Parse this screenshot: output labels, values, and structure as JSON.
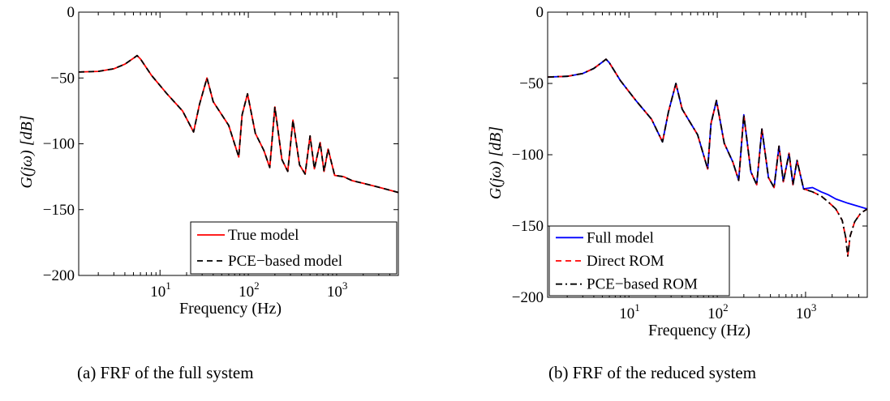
{
  "chart_data": [
    {
      "type": "line",
      "panel": "a",
      "caption": "(a) FRF of the full system",
      "xlabel": "Frequency (Hz)",
      "ylabel": "G(jω) [dB]",
      "xscale": "log",
      "xlim": [
        1.2,
        5000
      ],
      "ylim": [
        -200,
        0
      ],
      "xticks": [
        10,
        100,
        1000
      ],
      "xtick_base": "10",
      "xtick_exponents": [
        "1",
        "2",
        "3"
      ],
      "yticks": [
        "0",
        "−50",
        "−100",
        "−150",
        "−200"
      ],
      "grid": false,
      "legend": {
        "placement": "bottom-right",
        "entries": [
          "True model",
          "PCE−based model"
        ]
      },
      "series": [
        {
          "name": "True model",
          "color": "#ff0000",
          "style": "solid",
          "x": [
            1.2,
            2,
            3,
            4,
            5,
            5.5,
            6,
            8,
            12,
            18,
            24,
            28,
            34,
            40,
            60,
            78,
            85,
            98,
            120,
            150,
            175,
            200,
            240,
            280,
            320,
            380,
            440,
            500,
            560,
            650,
            720,
            800,
            950,
            1200,
            1500,
            2000,
            3000,
            5000
          ],
          "y": [
            -45.5,
            -45,
            -43,
            -39.5,
            -35,
            -33,
            -35.5,
            -48,
            -62,
            -75,
            -91,
            -70,
            -50,
            -68,
            -86,
            -110,
            -78,
            -62,
            -92,
            -105,
            -118,
            -72,
            -112,
            -121,
            -82,
            -116,
            -123,
            -94,
            -119,
            -99,
            -121,
            -104,
            -124,
            -125,
            -128,
            -130,
            -133,
            -137
          ]
        },
        {
          "name": "PCE−based model",
          "color": "#000000",
          "style": "dashed",
          "x": [
            1.2,
            2,
            3,
            4,
            5,
            5.5,
            6,
            8,
            12,
            18,
            24,
            28,
            34,
            40,
            60,
            78,
            85,
            98,
            120,
            150,
            175,
            200,
            240,
            280,
            320,
            380,
            440,
            500,
            560,
            650,
            720,
            800,
            950,
            1200,
            1500,
            2000,
            3000,
            5000
          ],
          "y": [
            -45.5,
            -45,
            -43,
            -39.5,
            -35,
            -33,
            -35.5,
            -48,
            -62,
            -75,
            -91,
            -70,
            -50,
            -68,
            -86,
            -110,
            -78,
            -62,
            -92,
            -105,
            -118,
            -72,
            -112,
            -121,
            -82,
            -116,
            -123,
            -94,
            -119,
            -99,
            -121,
            -104,
            -124,
            -125,
            -128,
            -130,
            -133,
            -137
          ]
        }
      ]
    },
    {
      "type": "line",
      "panel": "b",
      "caption": "(b) FRF of the reduced system",
      "xlabel": "Frequency (Hz)",
      "ylabel": "G(jω) [dB]",
      "xscale": "log",
      "xlim": [
        1.2,
        5000
      ],
      "ylim": [
        -200,
        0
      ],
      "xticks": [
        10,
        100,
        1000
      ],
      "xtick_base": "10",
      "xtick_exponents": [
        "1",
        "2",
        "3"
      ],
      "yticks": [
        "0",
        "−50",
        "−100",
        "−150",
        "−200"
      ],
      "grid": false,
      "legend": {
        "placement": "bottom-left",
        "entries": [
          "Full model",
          "Direct ROM",
          "PCE−based ROM"
        ]
      },
      "series": [
        {
          "name": "Full model",
          "color": "#0000ff",
          "style": "solid",
          "x": [
            1.2,
            2,
            3,
            4,
            5,
            5.5,
            6,
            8,
            12,
            18,
            24,
            28,
            34,
            40,
            60,
            78,
            85,
            98,
            120,
            150,
            175,
            200,
            240,
            280,
            320,
            380,
            440,
            500,
            560,
            650,
            720,
            800,
            950,
            1200,
            1500,
            1800,
            2200,
            3000,
            5000
          ],
          "y": [
            -45.5,
            -45,
            -43,
            -39.5,
            -35,
            -33,
            -35.5,
            -48,
            -62,
            -75,
            -91,
            -70,
            -50,
            -68,
            -86,
            -110,
            -78,
            -62,
            -92,
            -105,
            -118,
            -72,
            -112,
            -121,
            -82,
            -116,
            -123,
            -94,
            -119,
            -99,
            -121,
            -104,
            -124,
            -123,
            -126,
            -128,
            -131,
            -134,
            -138
          ]
        },
        {
          "name": "Direct ROM",
          "color": "#ff0000",
          "style": "dashed",
          "x": [
            1.2,
            2,
            3,
            4,
            5,
            5.5,
            6,
            8,
            12,
            18,
            24,
            28,
            34,
            40,
            60,
            78,
            85,
            98,
            120,
            150,
            175,
            200,
            240,
            280,
            320,
            380,
            440,
            500,
            560,
            650,
            720,
            800,
            950,
            1200,
            1500,
            1800,
            2200,
            2600,
            2850,
            3000,
            3200,
            3600,
            4200,
            5000
          ],
          "y": [
            -45.5,
            -45,
            -43,
            -39.5,
            -35,
            -33,
            -35.5,
            -48,
            -62,
            -75,
            -91,
            -70,
            -50,
            -68,
            -86,
            -110,
            -78,
            -62,
            -92,
            -105,
            -118,
            -72,
            -112,
            -121,
            -82,
            -116,
            -123,
            -94,
            -119,
            -99,
            -121,
            -104,
            -124,
            -126,
            -129,
            -133,
            -138,
            -146,
            -158,
            -171,
            -157,
            -147,
            -141,
            -138
          ]
        },
        {
          "name": "PCE−based ROM",
          "color": "#000000",
          "style": "dashdot",
          "x": [
            1.2,
            2,
            3,
            4,
            5,
            5.5,
            6,
            8,
            12,
            18,
            24,
            28,
            34,
            40,
            60,
            78,
            85,
            98,
            120,
            150,
            175,
            200,
            240,
            280,
            320,
            380,
            440,
            500,
            560,
            650,
            720,
            800,
            950,
            1200,
            1500,
            1800,
            2200,
            2600,
            2850,
            3000,
            3200,
            3600,
            4200,
            5000
          ],
          "y": [
            -45.5,
            -45,
            -43,
            -39.5,
            -35,
            -33,
            -35.5,
            -48,
            -62,
            -75,
            -91,
            -70,
            -50,
            -68,
            -86,
            -110,
            -78,
            -62,
            -92,
            -105,
            -118,
            -72,
            -112,
            -121,
            -82,
            -116,
            -123,
            -94,
            -119,
            -99,
            -121,
            -104,
            -124,
            -126,
            -129,
            -133,
            -138,
            -146,
            -158,
            -171,
            -157,
            -147,
            -141,
            -138
          ]
        }
      ]
    }
  ]
}
